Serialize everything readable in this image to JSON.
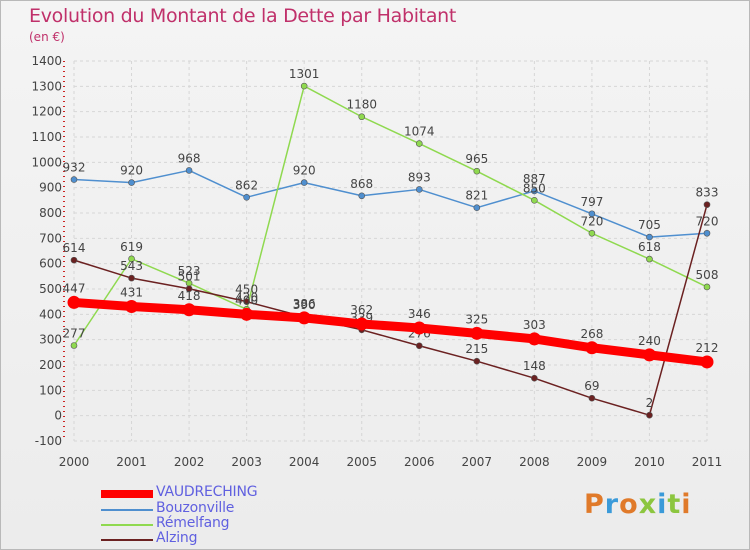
{
  "title": "Evolution du Montant de la Dette par Habitant",
  "unit": "(en €)",
  "logo": "Proxiti",
  "chart_data": {
    "type": "line",
    "x": [
      2000,
      2001,
      2002,
      2003,
      2004,
      2005,
      2006,
      2007,
      2008,
      2009,
      2010,
      2011
    ],
    "ylim": [
      -100,
      1400
    ],
    "yticks": [
      -100,
      0,
      100,
      200,
      300,
      400,
      500,
      600,
      700,
      800,
      900,
      1000,
      1100,
      1200,
      1300,
      1400
    ],
    "grid": true,
    "legend_position": "bottom-left",
    "series": [
      {
        "name": "VAUDRECHING",
        "color": "#ff0000",
        "values": [
          447,
          431,
          418,
          400,
          386,
          362,
          346,
          325,
          303,
          268,
          240,
          212
        ]
      },
      {
        "name": "Bouzonville",
        "color": "#4f8fcf",
        "values": [
          932,
          920,
          968,
          862,
          920,
          868,
          893,
          821,
          887,
          797,
          705,
          720
        ]
      },
      {
        "name": "Rémelfang",
        "color": "#8fd94f",
        "values": [
          277,
          619,
          523,
          420,
          1301,
          1180,
          1074,
          965,
          850,
          720,
          618,
          508
        ]
      },
      {
        "name": "Alzing",
        "color": "#6b2121",
        "values": [
          614,
          543,
          501,
          450,
          390,
          339,
          276,
          215,
          148,
          69,
          2,
          833
        ]
      }
    ]
  }
}
